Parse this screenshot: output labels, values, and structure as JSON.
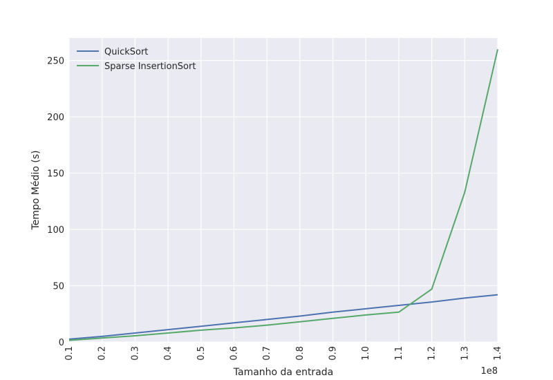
{
  "chart_data": {
    "type": "line",
    "xlabel": "Tamanho da entrada",
    "ylabel": "Tempo Médio (s)",
    "x_offset_label": "1e8",
    "x": [
      0.1,
      0.2,
      0.3,
      0.4,
      0.5,
      0.6,
      0.7,
      0.8,
      0.9,
      1.0,
      1.1,
      1.2,
      1.3,
      1.4
    ],
    "x_ticks": [
      "0.1",
      "0.2",
      "0.3",
      "0.4",
      "0.5",
      "0.6",
      "0.7",
      "0.8",
      "0.9",
      "1.0",
      "1.1",
      "1.2",
      "1.3",
      "1.4"
    ],
    "y_ticks": [
      "0",
      "50",
      "100",
      "150",
      "200",
      "250"
    ],
    "xlim": [
      0.1,
      1.4
    ],
    "ylim": [
      0,
      270
    ],
    "grid": true,
    "legend_position": "top-left",
    "series": [
      {
        "name": "QuickSort",
        "color": "#4c72b0",
        "values": [
          2.5,
          5.0,
          8.0,
          11.0,
          14.0,
          17.0,
          20.0,
          23.0,
          26.5,
          29.5,
          32.5,
          35.5,
          39.0,
          42.0
        ]
      },
      {
        "name": "Sparse InsertionSort",
        "color": "#55a868",
        "values": [
          1.5,
          3.5,
          5.5,
          8.0,
          10.5,
          12.5,
          15.0,
          18.0,
          21.0,
          24.0,
          26.5,
          47.0,
          133.0,
          260.0
        ]
      }
    ]
  }
}
